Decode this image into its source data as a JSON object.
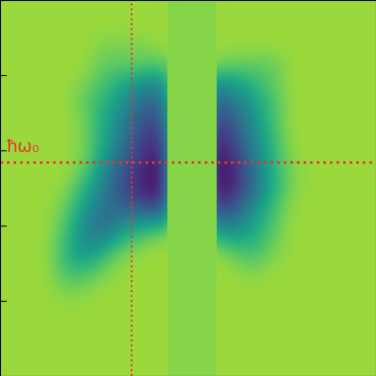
{
  "chart_data": {
    "type": "heatmap",
    "xlim": [
      0,
      20
    ],
    "ylim": [
      0,
      20
    ],
    "yticks": [
      4,
      8,
      12,
      16
    ],
    "tick_labels": false,
    "color_range": [
      0,
      1
    ],
    "cells": [
      [
        0.85,
        0.85,
        0.85,
        0.85,
        0.85,
        0.85,
        0.85,
        0.85,
        0.85,
        0.85,
        0.85,
        0.85,
        0.85,
        0.85,
        0.85,
        0.85,
        0.85,
        0.85,
        0.85,
        0.85
      ],
      [
        0.85,
        0.85,
        0.85,
        0.85,
        0.85,
        0.85,
        0.85,
        0.85,
        0.85,
        0.85,
        0.85,
        0.85,
        0.85,
        0.85,
        0.85,
        0.85,
        0.85,
        0.85,
        0.85,
        0.85
      ],
      [
        0.85,
        0.85,
        0.85,
        0.85,
        0.85,
        0.8,
        0.8,
        0.8,
        0.85,
        0.85,
        0.85,
        0.85,
        0.85,
        0.85,
        0.85,
        0.85,
        0.85,
        0.85,
        0.85,
        0.85
      ],
      [
        0.85,
        0.85,
        0.85,
        0.85,
        0.85,
        0.75,
        0.75,
        0.75,
        0.7,
        0.85,
        0.85,
        0.8,
        0.75,
        0.75,
        0.75,
        0.85,
        0.85,
        0.85,
        0.85,
        0.85
      ],
      [
        0.85,
        0.85,
        0.85,
        0.85,
        0.8,
        0.7,
        0.6,
        0.5,
        0.45,
        0.85,
        0.85,
        0.45,
        0.55,
        0.65,
        0.75,
        0.85,
        0.85,
        0.85,
        0.85,
        0.85
      ],
      [
        0.85,
        0.85,
        0.85,
        0.85,
        0.75,
        0.65,
        0.5,
        0.35,
        0.3,
        0.85,
        0.85,
        0.3,
        0.4,
        0.55,
        0.7,
        0.85,
        0.85,
        0.85,
        0.85,
        0.85
      ],
      [
        0.85,
        0.85,
        0.85,
        0.85,
        0.8,
        0.6,
        0.45,
        0.25,
        0.2,
        0.85,
        0.85,
        0.15,
        0.3,
        0.5,
        0.7,
        0.85,
        0.85,
        0.85,
        0.85,
        0.85
      ],
      [
        0.85,
        0.85,
        0.85,
        0.85,
        0.8,
        0.6,
        0.4,
        0.2,
        0.1,
        0.85,
        0.85,
        0.05,
        0.25,
        0.45,
        0.65,
        0.85,
        0.85,
        0.85,
        0.85,
        0.85
      ],
      [
        0.85,
        0.85,
        0.85,
        0.85,
        0.8,
        0.55,
        0.3,
        0.15,
        0.02,
        0.85,
        0.85,
        0.0,
        0.15,
        0.4,
        0.65,
        0.82,
        0.85,
        0.85,
        0.85,
        0.85
      ],
      [
        0.85,
        0.85,
        0.85,
        0.85,
        0.7,
        0.45,
        0.25,
        0.1,
        0.0,
        0.85,
        0.85,
        0.0,
        0.1,
        0.35,
        0.6,
        0.8,
        0.85,
        0.85,
        0.85,
        0.85
      ],
      [
        0.85,
        0.85,
        0.85,
        0.8,
        0.6,
        0.4,
        0.25,
        0.15,
        0.05,
        0.85,
        0.85,
        0.05,
        0.2,
        0.4,
        0.65,
        0.82,
        0.85,
        0.85,
        0.85,
        0.85
      ],
      [
        0.85,
        0.85,
        0.85,
        0.75,
        0.5,
        0.35,
        0.4,
        0.45,
        0.35,
        0.85,
        0.85,
        0.3,
        0.35,
        0.55,
        0.7,
        0.85,
        0.85,
        0.85,
        0.85,
        0.85
      ],
      [
        0.85,
        0.85,
        0.85,
        0.7,
        0.45,
        0.4,
        0.6,
        0.7,
        0.8,
        0.85,
        0.85,
        0.6,
        0.55,
        0.6,
        0.75,
        0.85,
        0.85,
        0.85,
        0.85,
        0.85
      ],
      [
        0.85,
        0.85,
        0.85,
        0.65,
        0.5,
        0.65,
        0.8,
        0.85,
        0.85,
        0.85,
        0.85,
        0.85,
        0.75,
        0.7,
        0.8,
        0.85,
        0.85,
        0.85,
        0.85,
        0.85
      ],
      [
        0.85,
        0.85,
        0.85,
        0.7,
        0.7,
        0.8,
        0.85,
        0.85,
        0.85,
        0.85,
        0.85,
        0.85,
        0.85,
        0.8,
        0.85,
        0.85,
        0.85,
        0.85,
        0.85,
        0.85
      ],
      [
        0.85,
        0.85,
        0.85,
        0.8,
        0.82,
        0.85,
        0.85,
        0.85,
        0.85,
        0.85,
        0.85,
        0.85,
        0.85,
        0.85,
        0.85,
        0.85,
        0.85,
        0.85,
        0.85,
        0.85
      ],
      [
        0.85,
        0.85,
        0.85,
        0.85,
        0.85,
        0.85,
        0.85,
        0.85,
        0.85,
        0.85,
        0.85,
        0.85,
        0.85,
        0.85,
        0.85,
        0.85,
        0.85,
        0.85,
        0.85,
        0.85
      ],
      [
        0.85,
        0.85,
        0.85,
        0.85,
        0.85,
        0.85,
        0.85,
        0.85,
        0.85,
        0.85,
        0.85,
        0.85,
        0.85,
        0.85,
        0.85,
        0.85,
        0.85,
        0.85,
        0.85,
        0.85
      ],
      [
        0.85,
        0.85,
        0.85,
        0.85,
        0.85,
        0.85,
        0.85,
        0.85,
        0.85,
        0.85,
        0.85,
        0.85,
        0.85,
        0.85,
        0.85,
        0.85,
        0.85,
        0.85,
        0.85,
        0.85
      ],
      [
        0.85,
        0.85,
        0.85,
        0.85,
        0.85,
        0.85,
        0.85,
        0.85,
        0.85,
        0.85,
        0.85,
        0.85,
        0.85,
        0.85,
        0.85,
        0.85,
        0.85,
        0.85,
        0.85,
        0.85
      ]
    ],
    "masked_region": {
      "x": [
        8.9,
        11.5
      ],
      "value": 0.82
    },
    "reference_lines": {
      "color": "#e8382a",
      "line_style": "dotted",
      "x": 7.0,
      "y": 11.4,
      "label": "ħω₀"
    }
  }
}
